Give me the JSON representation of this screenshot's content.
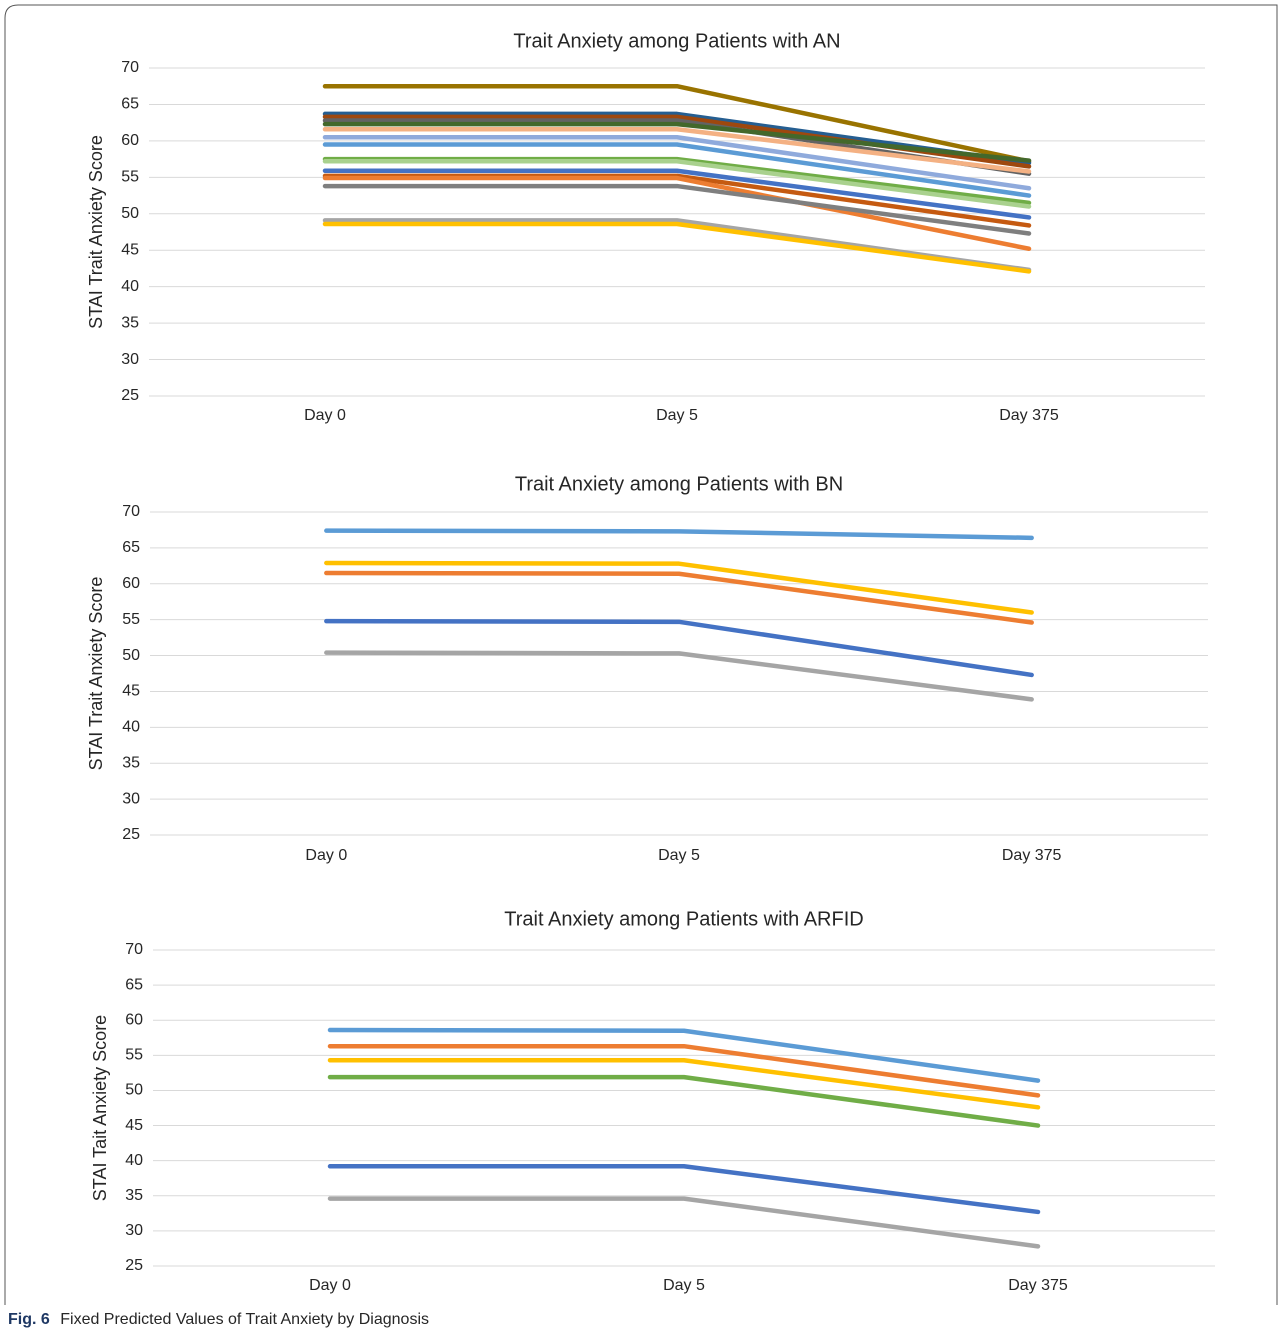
{
  "chart_data": [
    {
      "type": "line",
      "title": "Trait Anxiety among Patients with AN",
      "ylabel": "STAI Trait Anxiety Score",
      "categories": [
        "Day 0",
        "Day 5",
        "Day 375"
      ],
      "ylim": [
        25,
        70
      ],
      "yticks": [
        25,
        30,
        35,
        40,
        45,
        50,
        55,
        60,
        65,
        70
      ],
      "grid": true,
      "series": [
        {
          "color": "#997300",
          "values": [
            67.5,
            67.5,
            57.2
          ]
        },
        {
          "color": "#255e91",
          "values": [
            63.7,
            63.7,
            57.0
          ]
        },
        {
          "color": "#9e480e",
          "values": [
            63.3,
            63.3,
            56.5
          ]
        },
        {
          "color": "#636363",
          "values": [
            62.8,
            62.8,
            55.5
          ]
        },
        {
          "color": "#43682b",
          "values": [
            62.3,
            62.3,
            57.3
          ]
        },
        {
          "color": "#f4b183",
          "values": [
            61.6,
            61.6,
            55.8
          ]
        },
        {
          "color": "#8faadc",
          "values": [
            60.5,
            60.5,
            53.5
          ]
        },
        {
          "color": "#5b9bd5",
          "values": [
            59.5,
            59.5,
            52.5
          ]
        },
        {
          "color": "#70ad47",
          "values": [
            57.5,
            57.5,
            51.5
          ]
        },
        {
          "color": "#a9d18e",
          "values": [
            57.2,
            57.2,
            51.0
          ]
        },
        {
          "color": "#4472c4",
          "values": [
            55.9,
            55.9,
            49.5
          ]
        },
        {
          "color": "#c55a11",
          "values": [
            55.2,
            55.2,
            48.4
          ]
        },
        {
          "color": "#ed7d31",
          "values": [
            54.9,
            54.9,
            45.2
          ]
        },
        {
          "color": "#7f7f7f",
          "values": [
            53.8,
            53.8,
            47.3
          ]
        },
        {
          "color": "#a5a5a5",
          "values": [
            49.1,
            49.1,
            42.3
          ]
        },
        {
          "color": "#ffc000",
          "values": [
            48.6,
            48.6,
            42.1
          ]
        }
      ]
    },
    {
      "type": "line",
      "title": "Trait Anxiety among Patients with BN",
      "ylabel": "STAI Trait Anxiety Score",
      "categories": [
        "Day 0",
        "Day 5",
        "Day 375"
      ],
      "ylim": [
        25,
        70
      ],
      "yticks": [
        25,
        30,
        35,
        40,
        45,
        50,
        55,
        60,
        65,
        70
      ],
      "grid": true,
      "series": [
        {
          "color": "#5b9bd5",
          "values": [
            67.4,
            67.3,
            66.4
          ]
        },
        {
          "color": "#ffc000",
          "values": [
            62.9,
            62.8,
            56.0
          ]
        },
        {
          "color": "#ed7d31",
          "values": [
            61.5,
            61.4,
            54.6
          ]
        },
        {
          "color": "#4472c4",
          "values": [
            54.8,
            54.7,
            47.3
          ]
        },
        {
          "color": "#a5a5a5",
          "values": [
            50.4,
            50.3,
            43.9
          ]
        }
      ]
    },
    {
      "type": "line",
      "title": "Trait Anxiety among Patients with ARFID",
      "ylabel": "STAI Tait Anxiety Score",
      "categories": [
        "Day 0",
        "Day 5",
        "Day 375"
      ],
      "ylim": [
        25,
        70
      ],
      "yticks": [
        25,
        30,
        35,
        40,
        45,
        50,
        55,
        60,
        65,
        70
      ],
      "grid": true,
      "series": [
        {
          "color": "#5b9bd5",
          "values": [
            58.6,
            58.5,
            51.4
          ]
        },
        {
          "color": "#ed7d31",
          "values": [
            56.3,
            56.3,
            49.3
          ]
        },
        {
          "color": "#ffc000",
          "values": [
            54.3,
            54.3,
            47.6
          ]
        },
        {
          "color": "#70ad47",
          "values": [
            51.9,
            51.9,
            45.0
          ]
        },
        {
          "color": "#4472c4",
          "values": [
            39.2,
            39.2,
            32.7
          ]
        },
        {
          "color": "#a5a5a5",
          "values": [
            34.6,
            34.6,
            27.8
          ]
        }
      ]
    }
  ],
  "caption": {
    "label": "Fig. 6",
    "text": "Fixed Predicted Values of Trait Anxiety by Diagnosis"
  }
}
